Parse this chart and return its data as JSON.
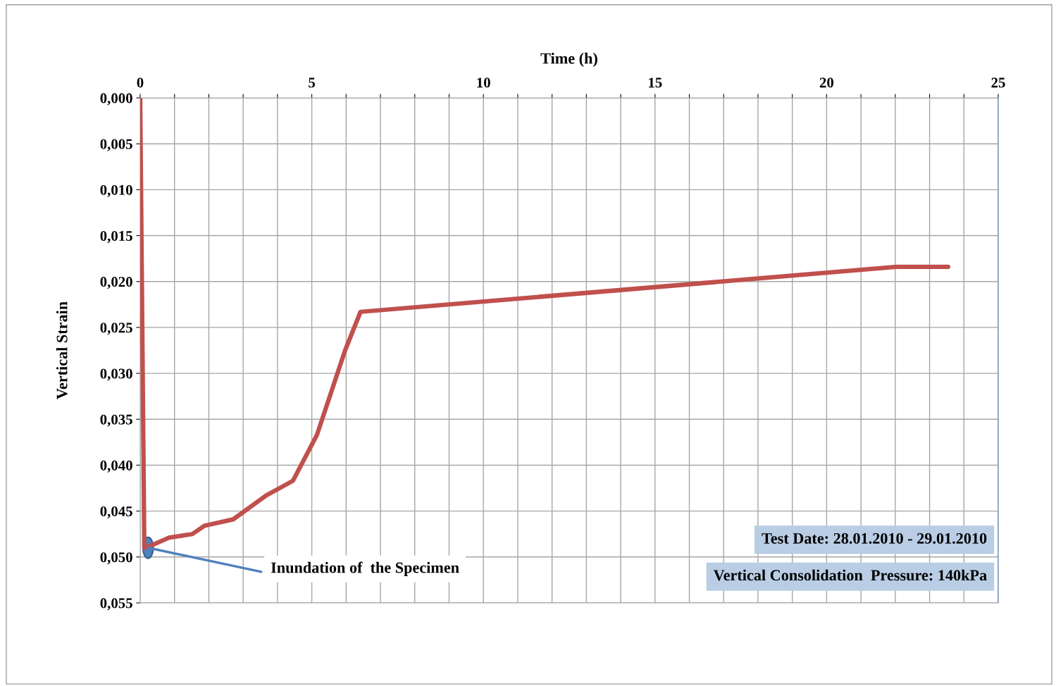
{
  "chart_data": {
    "type": "line",
    "xlabel": "Time (h)",
    "ylabel": "Vertical Strain",
    "x": [
      0,
      0.12,
      0.29,
      0.84,
      1.52,
      1.87,
      2.71,
      3.67,
      4.45,
      5.15,
      5.97,
      6.42,
      22.04,
      23.54
    ],
    "series": [
      {
        "color": "#c0504d",
        "values": [
          0.0,
          0.049,
          0.0488,
          0.0479,
          0.0475,
          0.0466,
          0.0459,
          0.0433,
          0.0417,
          0.0367,
          0.0275,
          0.0233,
          0.0184,
          0.0184
        ]
      }
    ],
    "xlim": [
      0,
      25
    ],
    "xticks": [
      0,
      {
        "value": 1,
        "label": null
      },
      {
        "value": 2,
        "label": null
      },
      {
        "value": 3,
        "label": null
      },
      {
        "value": 4,
        "label": null
      },
      5,
      {
        "value": 6,
        "label": null
      },
      {
        "value": 7,
        "label": null
      },
      {
        "value": 8,
        "label": null
      },
      {
        "value": 9,
        "label": null
      },
      10,
      {
        "value": 11,
        "label": null
      },
      {
        "value": 12,
        "label": null
      },
      {
        "value": 13,
        "label": null
      },
      {
        "value": 14,
        "label": null
      },
      15,
      {
        "value": 16,
        "label": null
      },
      {
        "value": 17,
        "label": null
      },
      {
        "value": 18,
        "label": null
      },
      {
        "value": 19,
        "label": null
      },
      20,
      {
        "value": 21,
        "label": null
      },
      {
        "value": 22,
        "label": null
      },
      {
        "value": 23,
        "label": null
      },
      {
        "value": 24,
        "label": null
      },
      25
    ],
    "ylim": [
      0.055,
      0.0
    ],
    "yticks": [
      {
        "value": 0.0,
        "label": "0,000"
      },
      {
        "value": 0.005,
        "label": "0,005"
      },
      {
        "value": 0.01,
        "label": "0,010"
      },
      {
        "value": 0.015,
        "label": "0,015"
      },
      {
        "value": 0.02,
        "label": "0,020"
      },
      {
        "value": 0.025,
        "label": "0,025"
      },
      {
        "value": 0.03,
        "label": "0,030"
      },
      {
        "value": 0.035,
        "label": "0,035"
      },
      {
        "value": 0.04,
        "label": "0,040"
      },
      {
        "value": 0.045,
        "label": "0,045"
      },
      {
        "value": 0.05,
        "label": "0,050"
      },
      {
        "value": 0.055,
        "label": "0,055"
      }
    ],
    "grid": true,
    "marker": "none",
    "line_style": "solid",
    "legend": false,
    "annotations": [
      {
        "text": "Inundation of  the Specimen",
        "x": 0.23,
        "y": 0.049
      },
      "Test Date: 28.01.2010 - 29.01.2010",
      "Vertical Consolidation  Pressure: 140kPa"
    ]
  }
}
